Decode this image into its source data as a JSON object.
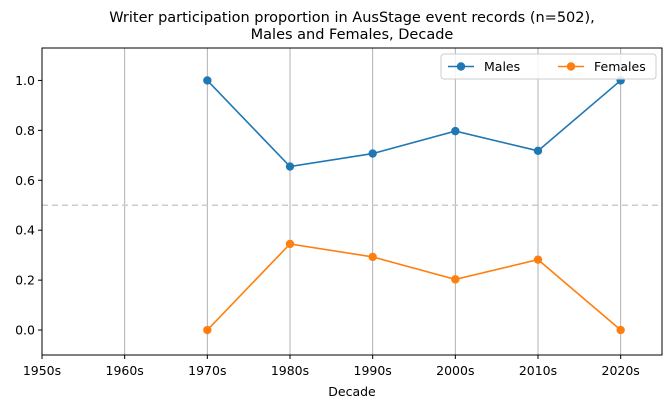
{
  "chart_data": {
    "type": "line",
    "title_line1": "Writer participation proportion in AusStage event records (n=502),",
    "title_line2": "Males and Females, Decade",
    "xlabel": "Decade",
    "ylabel": "",
    "categories": [
      "1950s",
      "1960s",
      "1970s",
      "1980s",
      "1990s",
      "2000s",
      "2010s",
      "2020s"
    ],
    "ylim": [
      -0.1,
      1.13
    ],
    "yticks": [
      "0.0",
      "0.2",
      "0.4",
      "0.6",
      "0.8",
      "1.0"
    ],
    "ytick_values": [
      0.0,
      0.2,
      0.4,
      0.6,
      0.8,
      1.0
    ],
    "grid": "vertical",
    "reference_line": 0.5,
    "legend_position": "top-right",
    "series": [
      {
        "name": "Males",
        "color": "#1f77b4",
        "x": [
          "1970s",
          "1980s",
          "1990s",
          "2000s",
          "2010s",
          "2020s"
        ],
        "values": [
          1.0,
          0.655,
          0.707,
          0.797,
          0.718,
          1.0
        ]
      },
      {
        "name": "Females",
        "color": "#ff7f0e",
        "x": [
          "1970s",
          "1980s",
          "1990s",
          "2000s",
          "2010s",
          "2020s"
        ],
        "values": [
          0.0,
          0.345,
          0.293,
          0.203,
          0.282,
          0.0
        ]
      }
    ]
  }
}
